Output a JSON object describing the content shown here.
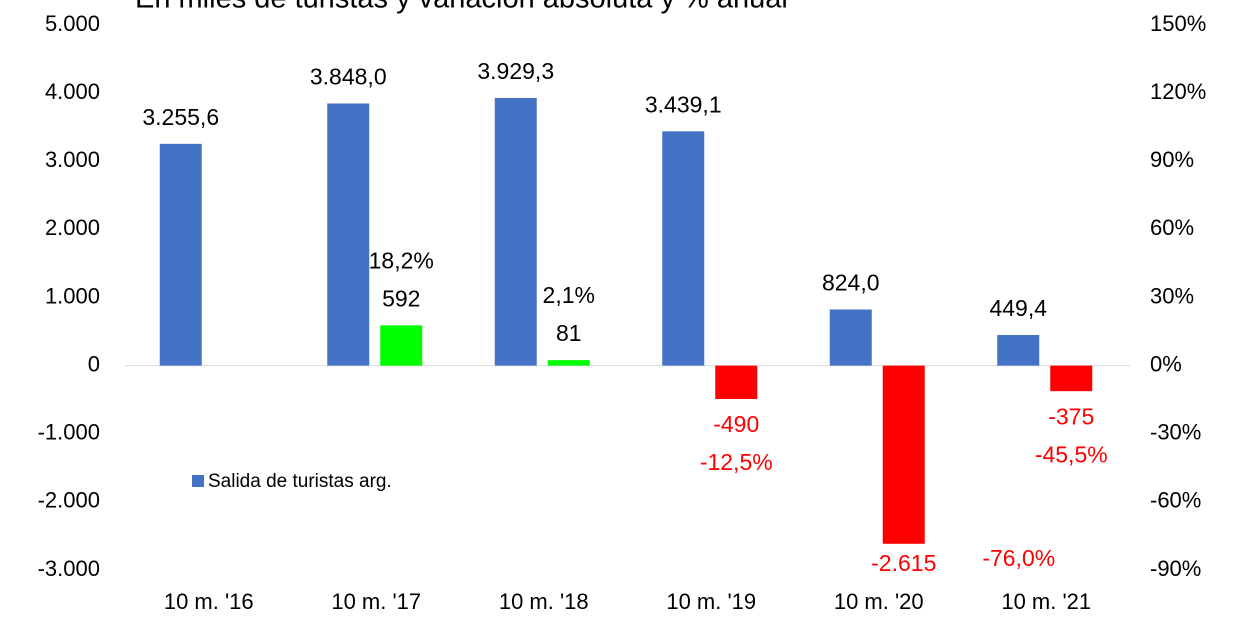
{
  "chart_data": {
    "type": "bar",
    "title": "En miles de turistas y variación absoluta y % anual",
    "categories": [
      "10 m. '16",
      "10 m. '17",
      "10 m. '18",
      "10 m. '19",
      "10 m. '20",
      "10 m. '21"
    ],
    "series": [
      {
        "name": "Salida de turistas arg.",
        "color": "#4472c4",
        "values": [
          3255.6,
          3848.0,
          3929.3,
          3439.1,
          824.0,
          449.4
        ],
        "value_labels": [
          "3.255,6",
          "3.848,0",
          "3.929,3",
          "3.439,1",
          "824,0",
          "449,4"
        ]
      },
      {
        "color_positive": "#00ff00",
        "color_negative": "#ff0000",
        "values": [
          null,
          592,
          81,
          -490,
          -2615,
          -375
        ],
        "value_labels": [
          null,
          "592",
          "81",
          "-490",
          "-2.615",
          "-375"
        ],
        "percent_labels": [
          null,
          "18,2%",
          "2,1%",
          "-12,5%",
          "-76,0%",
          "-45,5%"
        ]
      }
    ],
    "ylim": [
      -3000,
      5000
    ],
    "yticks": [
      {
        "value": -3000,
        "label": "-3.000"
      },
      {
        "value": -2000,
        "label": "-2.000"
      },
      {
        "value": -1000,
        "label": "-1.000"
      },
      0,
      {
        "value": 1000,
        "label": "1.000"
      },
      {
        "value": 2000,
        "label": "2.000"
      },
      {
        "value": 3000,
        "label": "3.000"
      },
      {
        "value": 4000,
        "label": "4.000"
      },
      {
        "value": 5000,
        "label": "5.000"
      }
    ],
    "y2lim": [
      -90,
      150
    ],
    "y2ticks": [
      {
        "value": -90,
        "label": "-90%"
      },
      {
        "value": -60,
        "label": "-60%"
      },
      {
        "value": -30,
        "label": "-30%"
      },
      {
        "value": 0,
        "label": "0%"
      },
      {
        "value": 30,
        "label": "30%"
      },
      {
        "value": 60,
        "label": "60%"
      },
      {
        "value": 90,
        "label": "90%"
      },
      {
        "value": 120,
        "label": "120%"
      },
      {
        "value": 150,
        "label": "150%"
      }
    ],
    "grid": false,
    "legend": "inside-left"
  }
}
